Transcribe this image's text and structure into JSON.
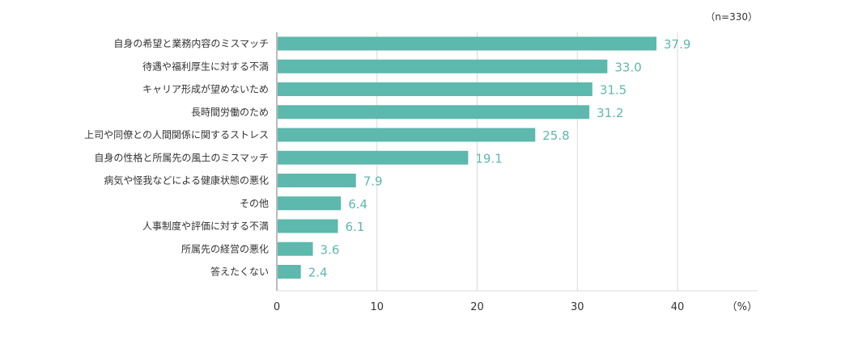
{
  "chart_data": {
    "type": "bar",
    "orientation": "horizontal",
    "sample_note": "（n=330）",
    "unit_label": "（%）",
    "categories": [
      "自身の希望と業務内容のミスマッチ",
      "待遇や福利厚生に対する不満",
      "キャリア形成が望めないため",
      "長時間労働のため",
      "上司や同僚との人間関係に関するストレス",
      "自身の性格と所属先の風土のミスマッチ",
      "病気や怪我などによる健康状態の悪化",
      "その他",
      "人事制度や評価に対する不満",
      "所属先の経営の悪化",
      "答えたくない"
    ],
    "values": [
      37.9,
      33.0,
      31.5,
      31.2,
      25.8,
      19.1,
      7.9,
      6.4,
      6.1,
      3.6,
      2.4
    ],
    "value_labels": [
      "37.9",
      "33.0",
      "31.5",
      "31.2",
      "25.8",
      "19.1",
      "7.9",
      "6.4",
      "6.1",
      "3.6",
      "2.4"
    ],
    "xlim": [
      0,
      48
    ],
    "ticks": [
      0,
      10,
      20,
      30,
      40
    ],
    "tick_labels": [
      "0",
      "10",
      "20",
      "30",
      "40"
    ],
    "grid": true,
    "colors": {
      "bar": "#5db8ad",
      "value_text": "#5db8ad",
      "grid": "#d9d9d9",
      "axis": "#bbbbbb"
    }
  }
}
